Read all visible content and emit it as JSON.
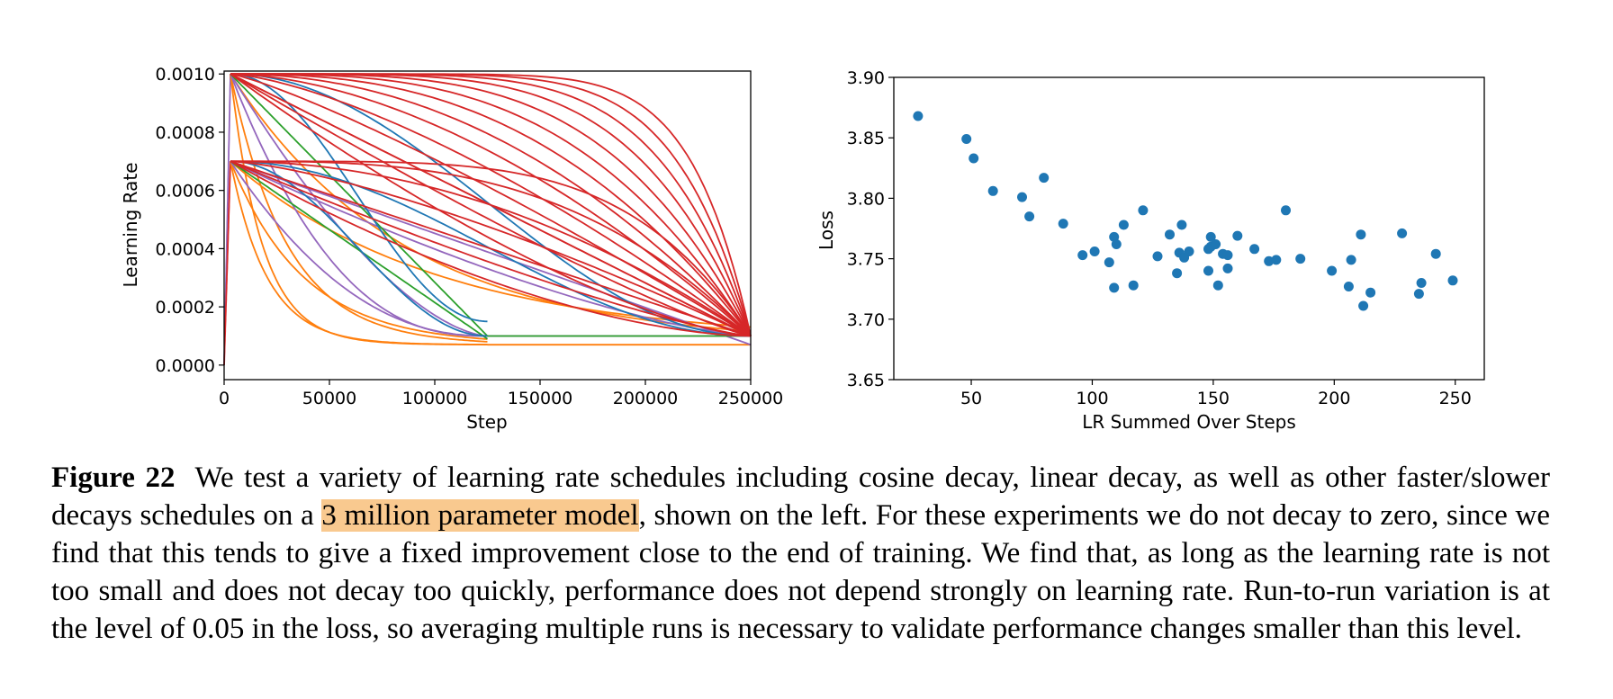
{
  "chart_data": [
    {
      "type": "line",
      "title": "",
      "xlabel": "Step",
      "ylabel": "Learning Rate",
      "xlim": [
        0,
        250000
      ],
      "ylim": [
        -5e-05,
        0.00101
      ],
      "xticks": [
        0,
        50000,
        100000,
        150000,
        200000,
        250000
      ],
      "xtick_labels": [
        "0",
        "50000",
        "100000",
        "150000",
        "200000",
        "250000"
      ],
      "yticks": [
        0.0,
        0.0002,
        0.0004,
        0.0006,
        0.0008,
        0.001
      ],
      "ytick_labels": [
        "0.0000",
        "0.0002",
        "0.0004",
        "0.0006",
        "0.0008",
        "0.0010"
      ],
      "grid": false,
      "colors": {
        "red": "#d62728",
        "blue": "#1f77b4",
        "orange": "#ff7f0e",
        "green": "#2ca02c",
        "purple": "#9467bd"
      },
      "series": [
        {
          "color": "#d62728",
          "values": [
            [
              0,
              0
            ],
            [
              3000,
              0.001
            ],
            [
              250000,
              1e-05
            ],
            [
              3000,
              0.0007
            ],
            [
              250000,
              1e-05
            ]
          ],
          "note_shape": "family of power-shaped decays from 0.0010 and 0.0007 ending near 0.0001 at 250000"
        },
        {
          "color": "#1f77b4",
          "values": [
            [
              3000,
              0.001
            ],
            [
              60000,
              0.0009
            ],
            [
              125000,
              0.00015
            ]
          ]
        },
        {
          "color": "#1f77b4",
          "values": [
            [
              3000,
              0.0007
            ],
            [
              125000,
              0.0001
            ]
          ]
        },
        {
          "color": "#2ca02c",
          "values": [
            [
              3000,
              0.001
            ],
            [
              125000,
              0.0001
            ],
            [
              250000,
              0.0001
            ]
          ]
        },
        {
          "color": "#ff7f0e",
          "values": [
            [
              3000,
              0.001
            ],
            [
              125000,
              8e-05
            ],
            [
              250000,
              7e-05
            ]
          ]
        },
        {
          "color": "#ff7f0e",
          "values": [
            [
              3000,
              0.0007
            ],
            [
              125000,
              7e-05
            ],
            [
              250000,
              7e-05
            ]
          ]
        },
        {
          "color": "#9467bd",
          "values": [
            [
              3000,
              0.001
            ],
            [
              125000,
              0.0001
            ],
            [
              250000,
              0.0001
            ]
          ]
        },
        {
          "color": "#9467bd",
          "values": [
            [
              3000,
              0.0007
            ],
            [
              125000,
              7e-05
            ],
            [
              250000,
              7e-05
            ]
          ]
        }
      ]
    },
    {
      "type": "scatter",
      "title": "",
      "xlabel": "LR Summed Over Steps",
      "ylabel": "Loss",
      "xlim": [
        18,
        262
      ],
      "ylim": [
        3.65,
        3.9
      ],
      "xticks": [
        50,
        100,
        150,
        200,
        250
      ],
      "xtick_labels": [
        "50",
        "100",
        "150",
        "200",
        "250"
      ],
      "yticks": [
        3.65,
        3.7,
        3.75,
        3.8,
        3.85,
        3.9
      ],
      "ytick_labels": [
        "3.65",
        "3.70",
        "3.75",
        "3.80",
        "3.85",
        "3.90"
      ],
      "grid": false,
      "color": "#1f77b4",
      "points": [
        [
          28,
          3.868
        ],
        [
          48,
          3.849
        ],
        [
          51,
          3.833
        ],
        [
          59,
          3.806
        ],
        [
          71,
          3.801
        ],
        [
          74,
          3.785
        ],
        [
          80,
          3.817
        ],
        [
          88,
          3.779
        ],
        [
          96,
          3.753
        ],
        [
          101,
          3.756
        ],
        [
          107,
          3.747
        ],
        [
          109,
          3.768
        ],
        [
          110,
          3.762
        ],
        [
          109,
          3.726
        ],
        [
          113,
          3.778
        ],
        [
          117,
          3.728
        ],
        [
          121,
          3.79
        ],
        [
          127,
          3.752
        ],
        [
          132,
          3.77
        ],
        [
          135,
          3.738
        ],
        [
          136,
          3.755
        ],
        [
          137,
          3.778
        ],
        [
          138,
          3.751
        ],
        [
          140,
          3.756
        ],
        [
          148,
          3.74
        ],
        [
          148,
          3.758
        ],
        [
          149,
          3.76
        ],
        [
          149,
          3.768
        ],
        [
          151,
          3.762
        ],
        [
          152,
          3.728
        ],
        [
          154,
          3.754
        ],
        [
          156,
          3.742
        ],
        [
          156,
          3.753
        ],
        [
          160,
          3.769
        ],
        [
          167,
          3.758
        ],
        [
          173,
          3.748
        ],
        [
          176,
          3.749
        ],
        [
          180,
          3.79
        ],
        [
          186,
          3.75
        ],
        [
          199,
          3.74
        ],
        [
          206,
          3.727
        ],
        [
          207,
          3.749
        ],
        [
          211,
          3.77
        ],
        [
          212,
          3.711
        ],
        [
          215,
          3.722
        ],
        [
          228,
          3.771
        ],
        [
          235,
          3.721
        ],
        [
          236,
          3.73
        ],
        [
          242,
          3.754
        ],
        [
          249,
          3.732
        ]
      ]
    }
  ],
  "caption": {
    "label": "Figure 22",
    "text_before": "We test a variety of learning rate schedules including cosine decay, linear decay, as well as other faster/slower decays schedules on a ",
    "highlight": "3 million parameter model",
    "text_after": ", shown on the left. For these experiments we do not decay to zero, since we find that this tends to give a fixed improvement close to the end of training. We find that, as long as the learning rate is not too small and does not decay too quickly, performance does not depend strongly on learning rate. Run-to-run variation is at the level of  0.05 in the loss, so averaging multiple runs is necessary to validate performance changes smaller than this level.",
    "highlight_color": "#f9c98f"
  }
}
